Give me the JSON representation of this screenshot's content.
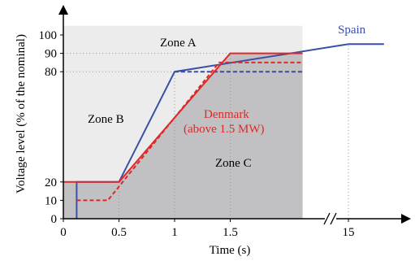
{
  "chart_data": {
    "type": "line",
    "xlabel": "Time (s)",
    "ylabel": "Voltage level (% of the nominal)",
    "xlim": [
      0,
      2.2
    ],
    "ylim": [
      0,
      105
    ],
    "x_tick_labels": [
      "0",
      "0.5",
      "1",
      "1.5",
      "15"
    ],
    "y_tick_labels": [
      "0",
      "10",
      "20",
      "80",
      "90",
      "100"
    ],
    "axis_break": true,
    "zones": [
      {
        "name": "Zone A",
        "label": "Zone A"
      },
      {
        "name": "Zone B",
        "label": "Zone B"
      },
      {
        "name": "Zone C",
        "label": "Zone C"
      }
    ],
    "zone_c_boundary": [
      [
        0,
        0
      ],
      [
        0,
        20
      ],
      [
        0.5,
        20
      ],
      [
        1.5,
        90
      ],
      [
        2.15,
        90
      ],
      [
        2.15,
        0
      ]
    ],
    "series": [
      {
        "name": "Spain",
        "color": "#3b4fa6",
        "segments": [
          {
            "style": "solid",
            "points": [
              [
                0.12,
                0
              ],
              [
                0.12,
                20
              ],
              [
                0.5,
                20
              ],
              [
                1.0,
                80
              ],
              [
                2.5,
                95
              ],
              [
                2.82,
                95
              ]
            ]
          },
          {
            "style": "dashed",
            "points": [
              [
                1.0,
                80
              ],
              [
                2.15,
                80
              ]
            ]
          }
        ]
      },
      {
        "name": "Denmark (above 1.5 MW)",
        "color": "#e02828",
        "segments": [
          {
            "style": "solid",
            "points": [
              [
                0,
                20
              ],
              [
                0.5,
                20
              ],
              [
                1.5,
                90
              ],
              [
                2.15,
                90
              ]
            ]
          },
          {
            "style": "dashed",
            "points": [
              [
                0.12,
                10
              ],
              [
                0.4,
                10
              ],
              [
                1.4,
                85
              ],
              [
                2.15,
                85
              ]
            ]
          }
        ]
      }
    ],
    "labels": {
      "spain": "Spain",
      "denmark_line1": "Denmark",
      "denmark_line2": "(above 1.5 MW)"
    },
    "colors": {
      "zone_a_fill": "#ececec",
      "zone_c_fill": "#c1c1c3",
      "spain": "#3b4fa6",
      "denmark": "#e02828",
      "grid": "#999999"
    }
  }
}
